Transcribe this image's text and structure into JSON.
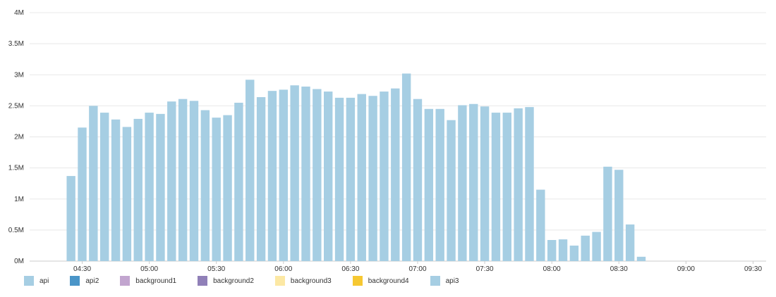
{
  "chart_data": {
    "type": "bar",
    "stacked": true,
    "y_ticks": [
      {
        "value": 0,
        "label": "0M"
      },
      {
        "value": 0.5,
        "label": "0.5M"
      },
      {
        "value": 1,
        "label": "1M"
      },
      {
        "value": 1.5,
        "label": "1.5M"
      },
      {
        "value": 2,
        "label": "2M"
      },
      {
        "value": 2.5,
        "label": "2.5M"
      },
      {
        "value": 3,
        "label": "3M"
      },
      {
        "value": 3.5,
        "label": "3.5M"
      },
      {
        "value": 4,
        "label": "4M"
      }
    ],
    "ylim": [
      0,
      4
    ],
    "x_ticks": [
      {
        "label": "04:30"
      },
      {
        "label": "05:00"
      },
      {
        "label": "05:30"
      },
      {
        "label": "06:00"
      },
      {
        "label": "06:30"
      },
      {
        "label": "07:00"
      },
      {
        "label": "07:30"
      },
      {
        "label": "08:00"
      },
      {
        "label": "08:30"
      },
      {
        "label": "09:00"
      },
      {
        "label": "09:30"
      }
    ],
    "bar_interval_minutes": 5,
    "first_bar_time": "04:25",
    "grid": true,
    "legend_position": "bottom-left",
    "series": [
      {
        "name": "api",
        "color": "#a6cee3",
        "values": [
          1.37,
          2.15,
          2.5,
          2.39,
          2.28,
          2.16,
          2.29,
          2.39,
          2.37,
          2.57,
          2.61,
          2.58,
          2.43,
          2.31,
          2.35,
          2.55,
          2.92,
          2.64,
          2.74,
          2.76,
          2.83,
          2.81,
          2.77,
          2.73,
          2.63,
          2.63,
          2.69,
          2.66,
          2.73,
          2.78,
          3.02,
          2.61,
          2.45,
          2.45,
          2.27,
          2.51,
          2.53,
          2.49,
          2.39,
          2.39,
          2.46,
          2.48,
          1.15,
          0.34,
          0.35,
          0.25,
          0.41,
          0.47,
          1.52,
          1.47,
          0.59,
          0.07
        ]
      },
      {
        "name": "api2",
        "color": "#4a95c8",
        "values": []
      },
      {
        "name": "background1",
        "color": "#c2a5cf",
        "values": []
      },
      {
        "name": "background2",
        "color": "#9080b8",
        "values": []
      },
      {
        "name": "background3",
        "color": "#fce8a4",
        "values": []
      },
      {
        "name": "background4",
        "color": "#f6c832",
        "values": []
      },
      {
        "name": "api3",
        "color": "#a6cee3",
        "values": []
      }
    ]
  }
}
